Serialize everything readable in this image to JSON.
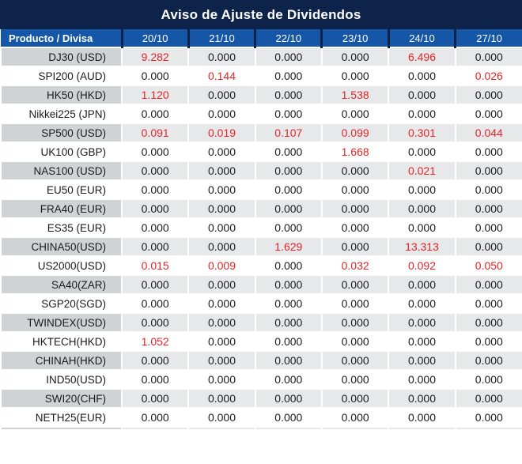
{
  "title": "Aviso de Ajuste de Dividendos",
  "colors": {
    "title_bg": "#0E2349",
    "header_bg": "#1557A6",
    "header_divider": "#0E2349",
    "row_gray_product": "#D0D3D6",
    "row_gray_value": "#E7E8E9",
    "row_white": "#FFFFFF",
    "value_red": "#E2242A",
    "text_dark": "#1A1A1A",
    "header_text": "#FFFFFF"
  },
  "table": {
    "product_header": "Producto / Divisa",
    "date_headers": [
      "20/10",
      "21/10",
      "22/10",
      "23/10",
      "24/10",
      "27/10"
    ],
    "rows": [
      {
        "product": "DJ30 (USD)",
        "values": [
          "9.282",
          "0.000",
          "0.000",
          "0.000",
          "6.496",
          "0.000"
        ],
        "red": [
          0,
          4
        ]
      },
      {
        "product": "SPI200 (AUD)",
        "values": [
          "0.000",
          "0.144",
          "0.000",
          "0.000",
          "0.000",
          "0.026"
        ],
        "red": [
          1,
          5
        ]
      },
      {
        "product": "HK50 (HKD)",
        "values": [
          "1.120",
          "0.000",
          "0.000",
          "1.538",
          "0.000",
          "0.000"
        ],
        "red": [
          0,
          3
        ]
      },
      {
        "product": "Nikkei225 (JPN)",
        "values": [
          "0.000",
          "0.000",
          "0.000",
          "0.000",
          "0.000",
          "0.000"
        ],
        "red": []
      },
      {
        "product": "SP500 (USD)",
        "values": [
          "0.091",
          "0.019",
          "0.107",
          "0.099",
          "0.301",
          "0.044"
        ],
        "red": [
          0,
          1,
          2,
          3,
          4,
          5
        ]
      },
      {
        "product": "UK100 (GBP)",
        "values": [
          "0.000",
          "0.000",
          "0.000",
          "1.668",
          "0.000",
          "0.000"
        ],
        "red": [
          3
        ]
      },
      {
        "product": "NAS100 (USD)",
        "values": [
          "0.000",
          "0.000",
          "0.000",
          "0.000",
          "0.021",
          "0.000"
        ],
        "red": [
          4
        ]
      },
      {
        "product": "EU50 (EUR)",
        "values": [
          "0.000",
          "0.000",
          "0.000",
          "0.000",
          "0.000",
          "0.000"
        ],
        "red": []
      },
      {
        "product": "FRA40 (EUR)",
        "values": [
          "0.000",
          "0.000",
          "0.000",
          "0.000",
          "0.000",
          "0.000"
        ],
        "red": []
      },
      {
        "product": "ES35 (EUR)",
        "values": [
          "0.000",
          "0.000",
          "0.000",
          "0.000",
          "0.000",
          "0.000"
        ],
        "red": []
      },
      {
        "product": "CHINA50(USD)",
        "values": [
          "0.000",
          "0.000",
          "1.629",
          "0.000",
          "13.313",
          "0.000"
        ],
        "red": [
          2,
          4
        ]
      },
      {
        "product": "US2000(USD)",
        "values": [
          "0.015",
          "0.009",
          "0.000",
          "0.032",
          "0.092",
          "0.050"
        ],
        "red": [
          0,
          1,
          3,
          4,
          5
        ]
      },
      {
        "product": "SA40(ZAR)",
        "values": [
          "0.000",
          "0.000",
          "0.000",
          "0.000",
          "0.000",
          "0.000"
        ],
        "red": []
      },
      {
        "product": "SGP20(SGD)",
        "values": [
          "0.000",
          "0.000",
          "0.000",
          "0.000",
          "0.000",
          "0.000"
        ],
        "red": []
      },
      {
        "product": "TWINDEX(USD)",
        "values": [
          "0.000",
          "0.000",
          "0.000",
          "0.000",
          "0.000",
          "0.000"
        ],
        "red": []
      },
      {
        "product": "HKTECH(HKD)",
        "values": [
          "1.052",
          "0.000",
          "0.000",
          "0.000",
          "0.000",
          "0.000"
        ],
        "red": [
          0
        ]
      },
      {
        "product": "CHINAH(HKD)",
        "values": [
          "0.000",
          "0.000",
          "0.000",
          "0.000",
          "0.000",
          "0.000"
        ],
        "red": []
      },
      {
        "product": "IND50(USD)",
        "values": [
          "0.000",
          "0.000",
          "0.000",
          "0.000",
          "0.000",
          "0.000"
        ],
        "red": []
      },
      {
        "product": "SWI20(CHF)",
        "values": [
          "0.000",
          "0.000",
          "0.000",
          "0.000",
          "0.000",
          "0.000"
        ],
        "red": []
      },
      {
        "product": "NETH25(EUR)",
        "values": [
          "0.000",
          "0.000",
          "0.000",
          "0.000",
          "0.000",
          "0.000"
        ],
        "red": []
      }
    ]
  }
}
